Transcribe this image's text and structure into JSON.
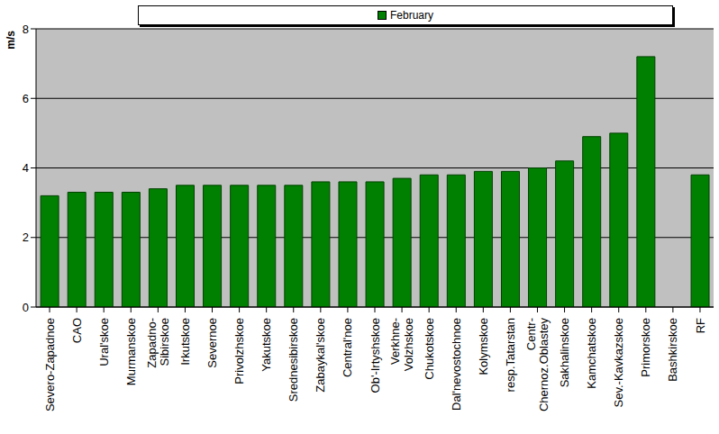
{
  "chart_data": {
    "type": "bar",
    "y_label": "m/s",
    "categories": [
      "Severo-Zapadnoe",
      "CAO",
      "Ural'skoe",
      "Murmanskoe",
      "Zapadno-\nSibirskoe",
      "Irkutskoe",
      "Severnoe",
      "Privolzhskoe",
      "Yakutskoe",
      "Srednesibirskoe",
      "Zabaykal'skoe",
      "Central'noe",
      "Ob'-Irtyshskoe",
      "Verkhne-\nVolzhskoe",
      "Chukotskoe",
      "Dal'nevostochnoe",
      "Kolymskoe",
      "resp.Tatarstan",
      "Centr-\nChernoz.Oblastey",
      "Sakhalinskoe",
      "Kamchatskoe",
      "Sev.-Kavkazskoe",
      "Primorskoe",
      "Bashkirskoe",
      "RF"
    ],
    "series": [
      {
        "name": "February",
        "color": "#008000",
        "values": [
          3.2,
          3.3,
          3.3,
          3.3,
          3.4,
          3.5,
          3.5,
          3.5,
          3.5,
          3.5,
          3.6,
          3.6,
          3.6,
          3.7,
          3.8,
          3.8,
          3.9,
          3.9,
          4.0,
          4.2,
          4.9,
          5.0,
          7.2,
          null,
          3.8
        ]
      }
    ],
    "ylim": [
      0,
      8
    ],
    "yticks": [
      0,
      2,
      4,
      6,
      8
    ],
    "grid": true,
    "legend": "top"
  }
}
